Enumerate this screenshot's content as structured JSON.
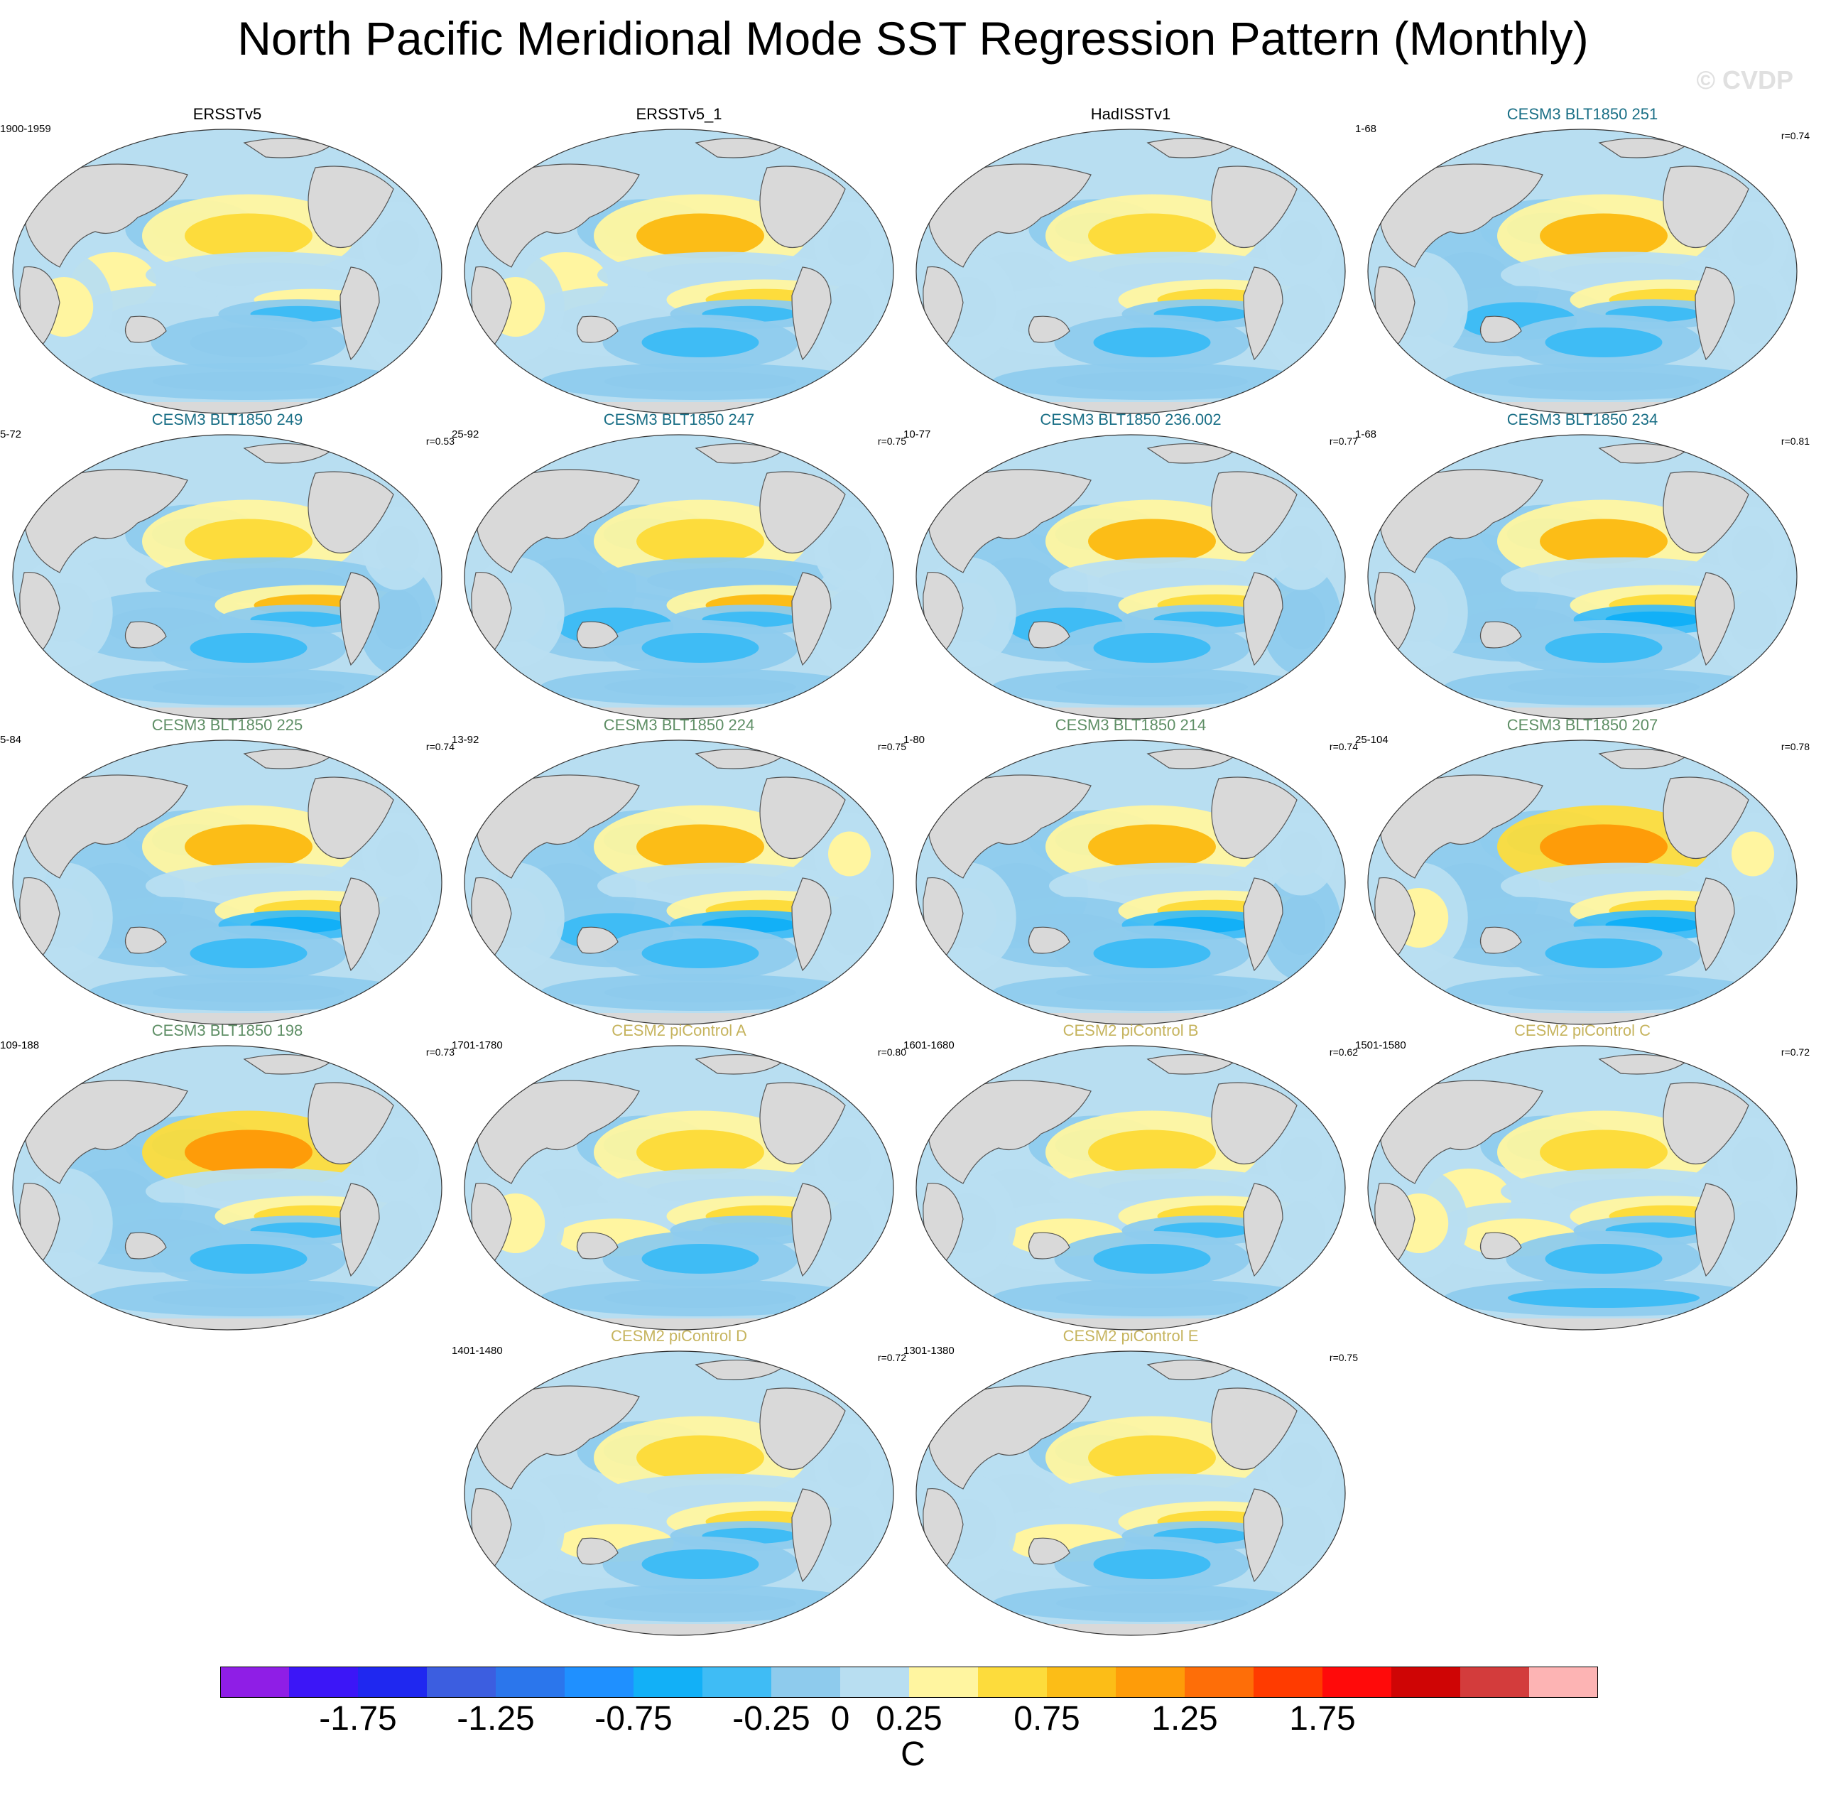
{
  "title": "North Pacific Meridional Mode SST Regression Pattern (Monthly)",
  "watermark": "© CVDP",
  "colors": {
    "land": "#d9d9d9",
    "coast": "#555555",
    "title_obs": "#000000",
    "title_cesm3_a": "#1a6f86",
    "title_cesm3_b": "#5f8f66",
    "title_cesm2": "#c6b45e",
    "levels": [
      "#8f1ee6",
      "#3c16f7",
      "#1f28f0",
      "#3c5ee0",
      "#2b76ec",
      "#1f90ff",
      "#12b0f7",
      "#3fbcf5",
      "#8ecbed",
      "#b8def1",
      "#fff5a0",
      "#fddc3c",
      "#fcbd17",
      "#fe9c09",
      "#fe6e08",
      "#ff3b00",
      "#ff0a0a",
      "#cf0505",
      "#d33c3c",
      "#fdb4b4"
    ]
  },
  "panels": [
    {
      "title": "ERSSTv5",
      "group": "obs",
      "period": "1900-1959",
      "r": "",
      "v": [
        0.3,
        -0.2,
        0.7,
        0.1,
        0.2,
        0.4,
        -0.3,
        -0.2,
        0.3,
        0.1,
        0.2,
        -0.2
      ]
    },
    {
      "title": "ERSSTv5_1",
      "group": "obs",
      "period": "",
      "r": "",
      "v": [
        0.3,
        -0.2,
        0.8,
        0.1,
        0.1,
        0.5,
        -0.3,
        -0.3,
        0.3,
        0.1,
        0.2,
        -0.1
      ]
    },
    {
      "title": "HadISSTv1",
      "group": "obs",
      "period": "",
      "r": "",
      "v": [
        0.2,
        -0.3,
        0.7,
        0.0,
        0.2,
        0.5,
        -0.4,
        -0.3,
        0.2,
        0.1,
        0.1,
        -0.2
      ]
    },
    {
      "title": "CESM3 BLT1850 251",
      "group": "cesm3_a",
      "period": "1-68",
      "r": "r=0.74",
      "v": [
        -0.2,
        -0.3,
        0.9,
        0.2,
        -0.3,
        0.6,
        -0.5,
        -0.4,
        0.1,
        0.1,
        0.0,
        -0.2
      ]
    },
    {
      "title": "CESM3 BLT1850 249",
      "group": "cesm3_a",
      "period": "5-72",
      "r": "r=0.53",
      "v": [
        0.1,
        -0.3,
        0.6,
        -0.1,
        -0.2,
        0.9,
        -0.4,
        -0.5,
        0.2,
        -0.1,
        0.1,
        -0.2
      ]
    },
    {
      "title": "CESM3 BLT1850 247",
      "group": "cesm3_a",
      "period": "25-92",
      "r": "r=0.75",
      "v": [
        -0.1,
        -0.3,
        0.7,
        -0.2,
        -0.3,
        0.9,
        -0.5,
        -0.4,
        0.1,
        0.0,
        0.0,
        -0.2
      ]
    },
    {
      "title": "CESM3 BLT1850 236.002",
      "group": "cesm3_a",
      "period": "10-77",
      "r": "r=0.77",
      "v": [
        -0.2,
        -0.4,
        0.9,
        0.1,
        -0.3,
        0.7,
        -0.5,
        -0.3,
        0.1,
        -0.1,
        0.1,
        -0.2
      ]
    },
    {
      "title": "CESM3 BLT1850 234",
      "group": "cesm3_a",
      "period": "1-68",
      "r": "r=0.81",
      "v": [
        -0.2,
        -0.4,
        0.8,
        0.1,
        -0.2,
        0.7,
        -0.6,
        -0.4,
        0.1,
        0.0,
        0.1,
        -0.2
      ]
    },
    {
      "title": "CESM3 BLT1850 225",
      "group": "cesm3_b",
      "period": "5-84",
      "r": "r=0.74",
      "v": [
        -0.1,
        -0.3,
        0.9,
        0.1,
        -0.2,
        0.6,
        -0.6,
        -0.3,
        0.2,
        0.0,
        0.2,
        -0.2
      ]
    },
    {
      "title": "CESM3 BLT1850 224",
      "group": "cesm3_b",
      "period": "13-92",
      "r": "r=0.75",
      "v": [
        -0.2,
        -0.3,
        0.9,
        0.2,
        -0.3,
        0.6,
        -0.6,
        -0.3,
        0.2,
        0.0,
        0.3,
        -0.1
      ]
    },
    {
      "title": "CESM3 BLT1850 214",
      "group": "cesm3_b",
      "period": "1-80",
      "r": "r=0.74",
      "v": [
        -0.2,
        -0.3,
        0.9,
        0.1,
        -0.2,
        0.6,
        -0.6,
        -0.3,
        0.2,
        -0.1,
        0.2,
        -0.2
      ]
    },
    {
      "title": "CESM3 BLT1850 207",
      "group": "cesm3_b",
      "period": "25-104",
      "r": "r=0.78",
      "v": [
        -0.1,
        -0.3,
        1.1,
        0.2,
        -0.2,
        0.6,
        -0.6,
        -0.3,
        0.3,
        0.0,
        0.3,
        -0.2
      ]
    },
    {
      "title": "CESM3 BLT1850 198",
      "group": "cesm3_b",
      "period": "109-188",
      "r": "r=0.73",
      "v": [
        -0.1,
        -0.4,
        1.0,
        0.2,
        -0.2,
        0.6,
        -0.5,
        -0.3,
        0.2,
        0.0,
        0.2,
        -0.2
      ]
    },
    {
      "title": "CESM2 piControl A",
      "group": "cesm2",
      "period": "1701-1780",
      "r": "r=0.80",
      "v": [
        0.2,
        -0.4,
        0.6,
        0.1,
        0.3,
        0.5,
        -0.2,
        -0.3,
        0.3,
        0.2,
        0.2,
        -0.2
      ]
    },
    {
      "title": "CESM2 piControl B",
      "group": "cesm2",
      "period": "1601-1680",
      "r": "r=0.62",
      "v": [
        0.2,
        -0.4,
        0.7,
        0.1,
        0.3,
        0.6,
        -0.3,
        -0.4,
        0.2,
        0.1,
        0.1,
        -0.2
      ]
    },
    {
      "title": "CESM2 piControl C",
      "group": "cesm2",
      "period": "1501-1580",
      "r": "r=0.72",
      "v": [
        0.3,
        -0.4,
        0.6,
        0.2,
        0.4,
        0.6,
        -0.3,
        -0.4,
        0.3,
        0.2,
        0.2,
        -0.3
      ]
    },
    {
      "title": "CESM2 piControl D",
      "group": "cesm2",
      "period": "1401-1480",
      "r": "r=0.72",
      "v": [
        0.2,
        -0.4,
        0.6,
        0.1,
        0.3,
        0.5,
        -0.3,
        -0.3,
        0.2,
        0.1,
        0.1,
        -0.2
      ]
    },
    {
      "title": "CESM2 piControl E",
      "group": "cesm2",
      "period": "1301-1380",
      "r": "r=0.75",
      "v": [
        0.2,
        -0.4,
        0.7,
        0.1,
        0.3,
        0.6,
        -0.3,
        -0.3,
        0.2,
        0.1,
        0.2,
        -0.2
      ]
    }
  ],
  "colorbar": {
    "min": -2.25,
    "step": 0.25,
    "tick_labels": [
      "-1.75",
      "-1.25",
      "-0.75",
      "-0.25",
      "0",
      "0.25",
      "0.75",
      "1.25",
      "1.75"
    ],
    "tick_values": [
      -1.75,
      -1.25,
      -0.75,
      -0.25,
      0,
      0.25,
      0.75,
      1.25,
      1.75
    ],
    "unit": "C"
  }
}
